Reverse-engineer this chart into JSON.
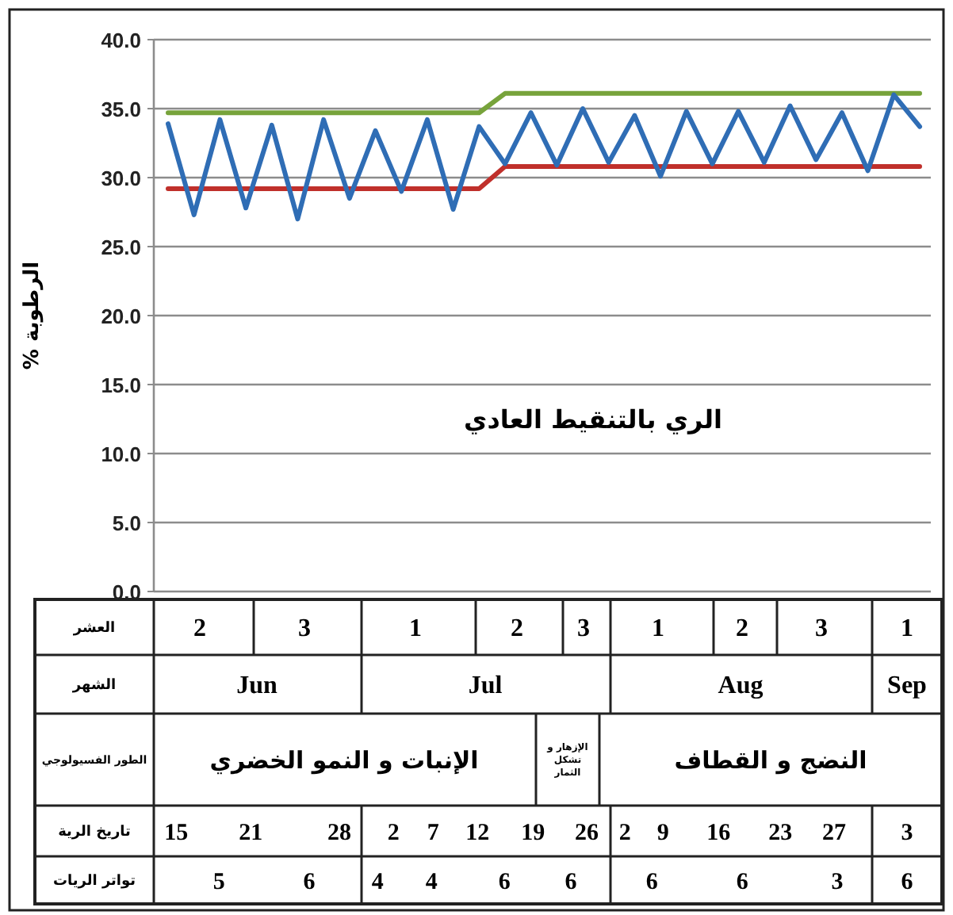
{
  "chart_data": {
    "type": "line",
    "ylabel": "الرطوبة %",
    "categories": [
      null,
      null,
      null,
      null,
      null,
      null,
      null,
      null,
      null,
      null,
      null,
      null,
      null,
      null,
      null,
      null,
      null,
      null,
      null,
      null,
      null,
      null,
      null,
      null,
      null,
      null,
      null,
      null,
      null,
      null
    ],
    "series": [
      {
        "color": "#77a33b",
        "values": [
          34.7,
          34.7,
          34.7,
          34.7,
          34.7,
          34.7,
          34.7,
          34.7,
          34.7,
          34.7,
          34.7,
          34.7,
          34.7,
          36.1,
          36.1,
          36.1,
          36.1,
          36.1,
          36.1,
          36.1,
          36.1,
          36.1,
          36.1,
          36.1,
          36.1,
          36.1,
          36.1,
          36.1,
          36.1,
          36.1
        ]
      },
      {
        "color": "#c0302b",
        "values": [
          29.2,
          29.2,
          29.2,
          29.2,
          29.2,
          29.2,
          29.2,
          29.2,
          29.2,
          29.2,
          29.2,
          29.2,
          29.2,
          30.8,
          30.8,
          30.8,
          30.8,
          30.8,
          30.8,
          30.8,
          30.8,
          30.8,
          30.8,
          30.8,
          30.8,
          30.8,
          30.8,
          30.8,
          30.8,
          30.8
        ]
      },
      {
        "color": "#2f6db5",
        "values": [
          33.9,
          27.3,
          34.2,
          27.8,
          33.8,
          27.0,
          34.2,
          28.5,
          33.4,
          29.0,
          34.2,
          27.7,
          33.7,
          31.0,
          34.7,
          30.9,
          35.0,
          31.1,
          34.5,
          30.1,
          34.8,
          31.0,
          34.8,
          31.1,
          35.2,
          31.3,
          34.7,
          30.5,
          36.0,
          33.7
        ]
      }
    ],
    "ylim": [
      0,
      40
    ],
    "yticks": [
      {
        "value": 0,
        "label": "0.0"
      },
      {
        "value": 5,
        "label": "5.0"
      },
      {
        "value": 10,
        "label": "10.0"
      },
      {
        "value": 15,
        "label": "15.0"
      },
      {
        "value": 20,
        "label": "20.0"
      },
      {
        "value": 25,
        "label": "25.0"
      },
      {
        "value": 30,
        "label": "30.0"
      },
      {
        "value": 35,
        "label": "35.0"
      },
      {
        "value": 40,
        "label": "40.0"
      }
    ],
    "grid": "y",
    "tick_labels": "y",
    "annotations": [
      "الري بالتنقيط العادي",
      "العشر",
      "الشهر",
      "الطور الفسيولوجي",
      "تاريخ الرية",
      "تواتر الريات",
      "2 3 1 2 3 1 2 3 1",
      "Jun",
      "Jul",
      "Aug",
      "Sep",
      "الإنبات و النمو الخضري",
      "الإزهار و تشكل الثمار",
      "النضج و القطاف",
      "15 21 28",
      "2 7 12 19 26",
      "2 9 16 23 27",
      "3",
      "5 6",
      "4 4 6 6",
      "6 6 3",
      "6"
    ]
  }
}
